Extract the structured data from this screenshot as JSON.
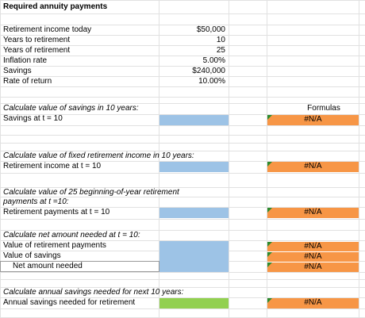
{
  "title": "Required annuity payments",
  "inputs": [
    {
      "label": "Retirement income today",
      "value": "$50,000"
    },
    {
      "label": "Years to retirement",
      "value": "10"
    },
    {
      "label": "Years of retirement",
      "value": "25"
    },
    {
      "label": "Inflation rate",
      "value": "5.00%"
    },
    {
      "label": "Savings",
      "value": "$240,000"
    },
    {
      "label": "Rate of return",
      "value": "10.00%"
    }
  ],
  "sections": {
    "s1": {
      "heading": "Calculate value of savings in 10 years:",
      "row": "Savings at t = 10"
    },
    "s2": {
      "heading": "Calculate value of fixed retirement income in 10 years:",
      "row": "Retirement income at t = 10"
    },
    "s3": {
      "heading1": "Calculate value of 25 beginning-of-year retirement",
      "heading2": "payments at t =10:",
      "row": "Retirement payments at t = 10"
    },
    "s4": {
      "heading": "Calculate net amount needed at t = 10:",
      "row1": "Value of retirement payments",
      "row2": "Value of savings",
      "row3": "Net amount needed"
    },
    "s5": {
      "heading": "Calculate annual savings needed for next 10 years:",
      "row": "Annual savings needed for retirement"
    }
  },
  "formulas_header": "Formulas",
  "na": "#N/A",
  "colors": {
    "blue": "#9dc3e6",
    "green": "#92d050",
    "orange": "#f79646",
    "error_triangle": "#2e8b2e"
  }
}
